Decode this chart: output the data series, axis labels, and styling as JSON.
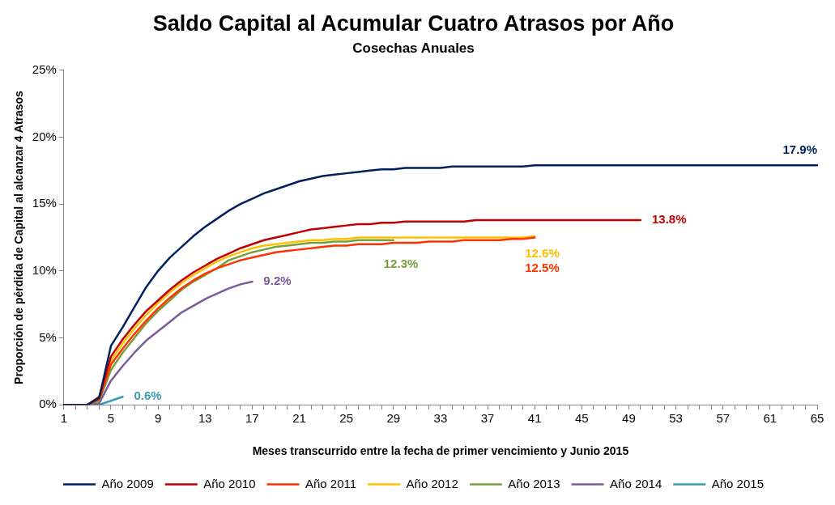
{
  "chart_data": {
    "type": "line",
    "title": "Saldo Capital al Acumular Cuatro Atrasos por Año",
    "subtitle": "Cosechas Anuales",
    "xlabel": "Meses transcurrido entre la fecha de primer vencimiento y Junio 2015",
    "ylabel": "Proporción de pérdida de Capital al alcanzar 4 Atrasos",
    "categories": [
      "1",
      null,
      null,
      null,
      "5",
      null,
      null,
      null,
      "9",
      null,
      null,
      null,
      "13",
      null,
      null,
      null,
      "17",
      null,
      null,
      null,
      "21",
      null,
      null,
      null,
      "25",
      null,
      null,
      null,
      "29",
      null,
      null,
      null,
      "33",
      null,
      null,
      null,
      "37",
      null,
      null,
      null,
      "41",
      null,
      null,
      null,
      "45",
      null,
      null,
      null,
      "49",
      null,
      null,
      null,
      "53",
      null,
      null,
      null,
      "57",
      null,
      null,
      null,
      "61",
      null,
      null,
      null,
      "65"
    ],
    "ylim": [
      0,
      25
    ],
    "yticks": [
      {
        "value": 0,
        "label": "0%"
      },
      {
        "value": 5,
        "label": "5%"
      },
      {
        "value": 10,
        "label": "10%"
      },
      {
        "value": 15,
        "label": "15%"
      },
      {
        "value": 20,
        "label": "20%"
      },
      {
        "value": 25,
        "label": "25%"
      }
    ],
    "grid": false,
    "legend": "bottom",
    "marker": "none",
    "line_style": "solid",
    "series": [
      {
        "name": "Año 2009",
        "color": "#002060",
        "values": [
          0,
          0,
          0,
          0.5,
          4.4,
          5.8,
          7.3,
          8.8,
          10.0,
          11.0,
          11.8,
          12.6,
          13.3,
          13.9,
          14.5,
          15.0,
          15.4,
          15.8,
          16.1,
          16.4,
          16.7,
          16.9,
          17.1,
          17.2,
          17.3,
          17.4,
          17.5,
          17.6,
          17.6,
          17.7,
          17.7,
          17.7,
          17.7,
          17.8,
          17.8,
          17.8,
          17.8,
          17.8,
          17.8,
          17.8,
          17.9,
          17.9,
          17.9,
          17.9,
          17.9,
          17.9,
          17.9,
          17.9,
          17.9,
          17.9,
          17.9,
          17.9,
          17.9,
          17.9,
          17.9,
          17.9,
          17.9,
          17.9,
          17.9,
          17.9,
          17.9,
          17.9,
          17.9,
          17.9,
          17.9
        ],
        "value_labels": [
          null,
          null,
          null,
          null,
          null,
          null,
          null,
          null,
          null,
          null,
          null,
          null,
          null,
          null,
          null,
          null,
          null,
          null,
          null,
          null,
          null,
          null,
          null,
          null,
          null,
          null,
          null,
          null,
          null,
          null,
          null,
          null,
          null,
          null,
          null,
          null,
          null,
          null,
          null,
          null,
          null,
          null,
          null,
          null,
          null,
          null,
          null,
          null,
          null,
          null,
          null,
          null,
          null,
          null,
          null,
          null,
          null,
          null,
          null,
          null,
          null,
          null,
          null,
          null,
          "17.9%"
        ]
      },
      {
        "name": "Año 2010",
        "color": "#c00000",
        "values": [
          0,
          0,
          0,
          0.6,
          3.6,
          4.9,
          6.0,
          7.0,
          7.8,
          8.6,
          9.3,
          9.9,
          10.4,
          10.9,
          11.3,
          11.7,
          12.0,
          12.3,
          12.5,
          12.7,
          12.9,
          13.1,
          13.2,
          13.3,
          13.4,
          13.5,
          13.5,
          13.6,
          13.6,
          13.7,
          13.7,
          13.7,
          13.7,
          13.7,
          13.7,
          13.8,
          13.8,
          13.8,
          13.8,
          13.8,
          13.8,
          13.8,
          13.8,
          13.8,
          13.8,
          13.8,
          13.8,
          13.8,
          13.8,
          13.8,
          null,
          null,
          null,
          null,
          null,
          null,
          null,
          null,
          null,
          null,
          null,
          null,
          null,
          null,
          null
        ],
        "value_labels": [
          null,
          null,
          null,
          null,
          null,
          null,
          null,
          null,
          null,
          null,
          null,
          null,
          null,
          null,
          null,
          null,
          null,
          null,
          null,
          null,
          null,
          null,
          null,
          null,
          null,
          null,
          null,
          null,
          null,
          null,
          null,
          null,
          null,
          null,
          null,
          null,
          null,
          null,
          null,
          null,
          null,
          null,
          null,
          null,
          null,
          null,
          null,
          null,
          null,
          "13.8%",
          null,
          null,
          null,
          null,
          null,
          null,
          null,
          null,
          null,
          null,
          null,
          null,
          null,
          null,
          null
        ]
      },
      {
        "name": "Año 2011",
        "color": "#ff3300",
        "values": [
          0,
          0,
          0,
          0.4,
          3.0,
          4.2,
          5.3,
          6.3,
          7.2,
          8.0,
          8.7,
          9.3,
          9.8,
          10.2,
          10.5,
          10.8,
          11.0,
          11.2,
          11.4,
          11.5,
          11.6,
          11.7,
          11.8,
          11.9,
          11.9,
          12.0,
          12.0,
          12.0,
          12.1,
          12.1,
          12.1,
          12.2,
          12.2,
          12.2,
          12.3,
          12.3,
          12.3,
          12.3,
          12.4,
          12.4,
          12.5,
          null,
          null,
          null,
          null,
          null,
          null,
          null,
          null,
          null,
          null,
          null,
          null,
          null,
          null,
          null,
          null,
          null,
          null,
          null,
          null,
          null,
          null,
          null,
          null
        ],
        "value_labels": [
          null,
          null,
          null,
          null,
          null,
          null,
          null,
          null,
          null,
          null,
          null,
          null,
          null,
          null,
          null,
          null,
          null,
          null,
          null,
          null,
          null,
          null,
          null,
          null,
          null,
          null,
          null,
          null,
          null,
          null,
          null,
          null,
          null,
          null,
          null,
          null,
          null,
          null,
          null,
          null,
          "12.5%",
          null,
          null,
          null,
          null,
          null,
          null,
          null,
          null,
          null,
          null,
          null,
          null,
          null,
          null,
          null,
          null,
          null,
          null,
          null,
          null,
          null,
          null,
          null,
          null
        ]
      },
      {
        "name": "Año 2012",
        "color": "#ffc000",
        "values": [
          null,
          null,
          null,
          0.5,
          3.3,
          4.6,
          5.7,
          6.7,
          7.6,
          8.4,
          9.1,
          9.7,
          10.2,
          10.7,
          11.1,
          11.4,
          11.7,
          11.9,
          12.0,
          12.1,
          12.2,
          12.3,
          12.3,
          12.4,
          12.4,
          12.5,
          12.5,
          12.5,
          12.5,
          12.5,
          12.5,
          12.5,
          12.5,
          12.5,
          12.5,
          12.5,
          12.5,
          12.5,
          12.5,
          12.5,
          12.6,
          null,
          null,
          null,
          null,
          null,
          null,
          null,
          null,
          null,
          null,
          null,
          null,
          null,
          null,
          null,
          null,
          null,
          null,
          null,
          null,
          null,
          null,
          null,
          null
        ],
        "value_labels": [
          null,
          null,
          null,
          null,
          null,
          null,
          null,
          null,
          null,
          null,
          null,
          null,
          null,
          null,
          null,
          null,
          null,
          null,
          null,
          null,
          null,
          null,
          null,
          null,
          null,
          null,
          null,
          null,
          null,
          null,
          null,
          null,
          null,
          null,
          null,
          null,
          null,
          null,
          null,
          null,
          "12.6%",
          null,
          null,
          null,
          null,
          null,
          null,
          null,
          null,
          null,
          null,
          null,
          null,
          null,
          null,
          null,
          null,
          null,
          null,
          null,
          null,
          null,
          null,
          null,
          null
        ]
      },
      {
        "name": "Año 2013",
        "color": "#77a03c",
        "values": [
          null,
          null,
          0,
          0.3,
          2.6,
          3.9,
          5.0,
          6.1,
          7.0,
          7.8,
          8.6,
          9.2,
          9.7,
          10.2,
          10.8,
          11.1,
          11.4,
          11.6,
          11.8,
          11.9,
          12.0,
          12.1,
          12.1,
          12.2,
          12.2,
          12.3,
          12.3,
          12.3,
          12.3,
          null,
          null,
          null,
          null,
          null,
          null,
          null,
          null,
          null,
          null,
          null,
          null,
          null,
          null,
          null,
          null,
          null,
          null,
          null,
          null,
          null,
          null,
          null,
          null,
          null,
          null,
          null,
          null,
          null,
          null,
          null,
          null,
          null,
          null,
          null,
          null
        ],
        "value_labels": [
          null,
          null,
          null,
          null,
          null,
          null,
          null,
          null,
          null,
          null,
          null,
          null,
          null,
          null,
          null,
          null,
          null,
          null,
          null,
          null,
          null,
          null,
          null,
          null,
          null,
          null,
          null,
          null,
          "12.3%",
          null,
          null,
          null,
          null,
          null,
          null,
          null,
          null,
          null,
          null,
          null,
          null,
          null,
          null,
          null,
          null,
          null,
          null,
          null,
          null,
          null,
          null,
          null,
          null,
          null,
          null,
          null,
          null,
          null,
          null,
          null,
          null,
          null,
          null,
          null,
          null
        ]
      },
      {
        "name": "Año 2014",
        "color": "#7a5c9a",
        "values": [
          0,
          0,
          0,
          0.1,
          1.8,
          2.9,
          3.9,
          4.8,
          5.5,
          6.2,
          6.9,
          7.4,
          7.9,
          8.3,
          8.7,
          9.0,
          9.2,
          null,
          null,
          null,
          null,
          null,
          null,
          null,
          null,
          null,
          null,
          null,
          null,
          null,
          null,
          null,
          null,
          null,
          null,
          null,
          null,
          null,
          null,
          null,
          null,
          null,
          null,
          null,
          null,
          null,
          null,
          null,
          null,
          null,
          null,
          null,
          null,
          null,
          null,
          null,
          null,
          null,
          null,
          null,
          null,
          null,
          null,
          null,
          null
        ],
        "value_labels": [
          null,
          null,
          null,
          null,
          null,
          null,
          null,
          null,
          null,
          null,
          null,
          null,
          null,
          null,
          null,
          null,
          "9.2%",
          null,
          null,
          null,
          null,
          null,
          null,
          null,
          null,
          null,
          null,
          null,
          null,
          null,
          null,
          null,
          null,
          null,
          null,
          null,
          null,
          null,
          null,
          null,
          null,
          null,
          null,
          null,
          null,
          null,
          null,
          null,
          null,
          null,
          null,
          null,
          null,
          null,
          null,
          null,
          null,
          null,
          null,
          null,
          null,
          null,
          null,
          null,
          null
        ]
      },
      {
        "name": "Año 2015",
        "color": "#3a9ab0",
        "values": [
          null,
          null,
          0,
          0,
          0.3,
          0.6,
          null,
          null,
          null,
          null,
          null,
          null,
          null,
          null,
          null,
          null,
          null,
          null,
          null,
          null,
          null,
          null,
          null,
          null,
          null,
          null,
          null,
          null,
          null,
          null,
          null,
          null,
          null,
          null,
          null,
          null,
          null,
          null,
          null,
          null,
          null,
          null,
          null,
          null,
          null,
          null,
          null,
          null,
          null,
          null,
          null,
          null,
          null,
          null,
          null,
          null,
          null,
          null,
          null,
          null,
          null,
          null,
          null,
          null,
          null
        ],
        "value_labels": [
          null,
          null,
          null,
          null,
          null,
          "0.6%",
          null,
          null,
          null,
          null,
          null,
          null,
          null,
          null,
          null,
          null,
          null,
          null,
          null,
          null,
          null,
          null,
          null,
          null,
          null,
          null,
          null,
          null,
          null,
          null,
          null,
          null,
          null,
          null,
          null,
          null,
          null,
          null,
          null,
          null,
          null,
          null,
          null,
          null,
          null,
          null,
          null,
          null,
          null,
          null,
          null,
          null,
          null,
          null,
          null,
          null,
          null,
          null,
          null,
          null,
          null,
          null,
          null,
          null,
          null
        ]
      }
    ]
  }
}
